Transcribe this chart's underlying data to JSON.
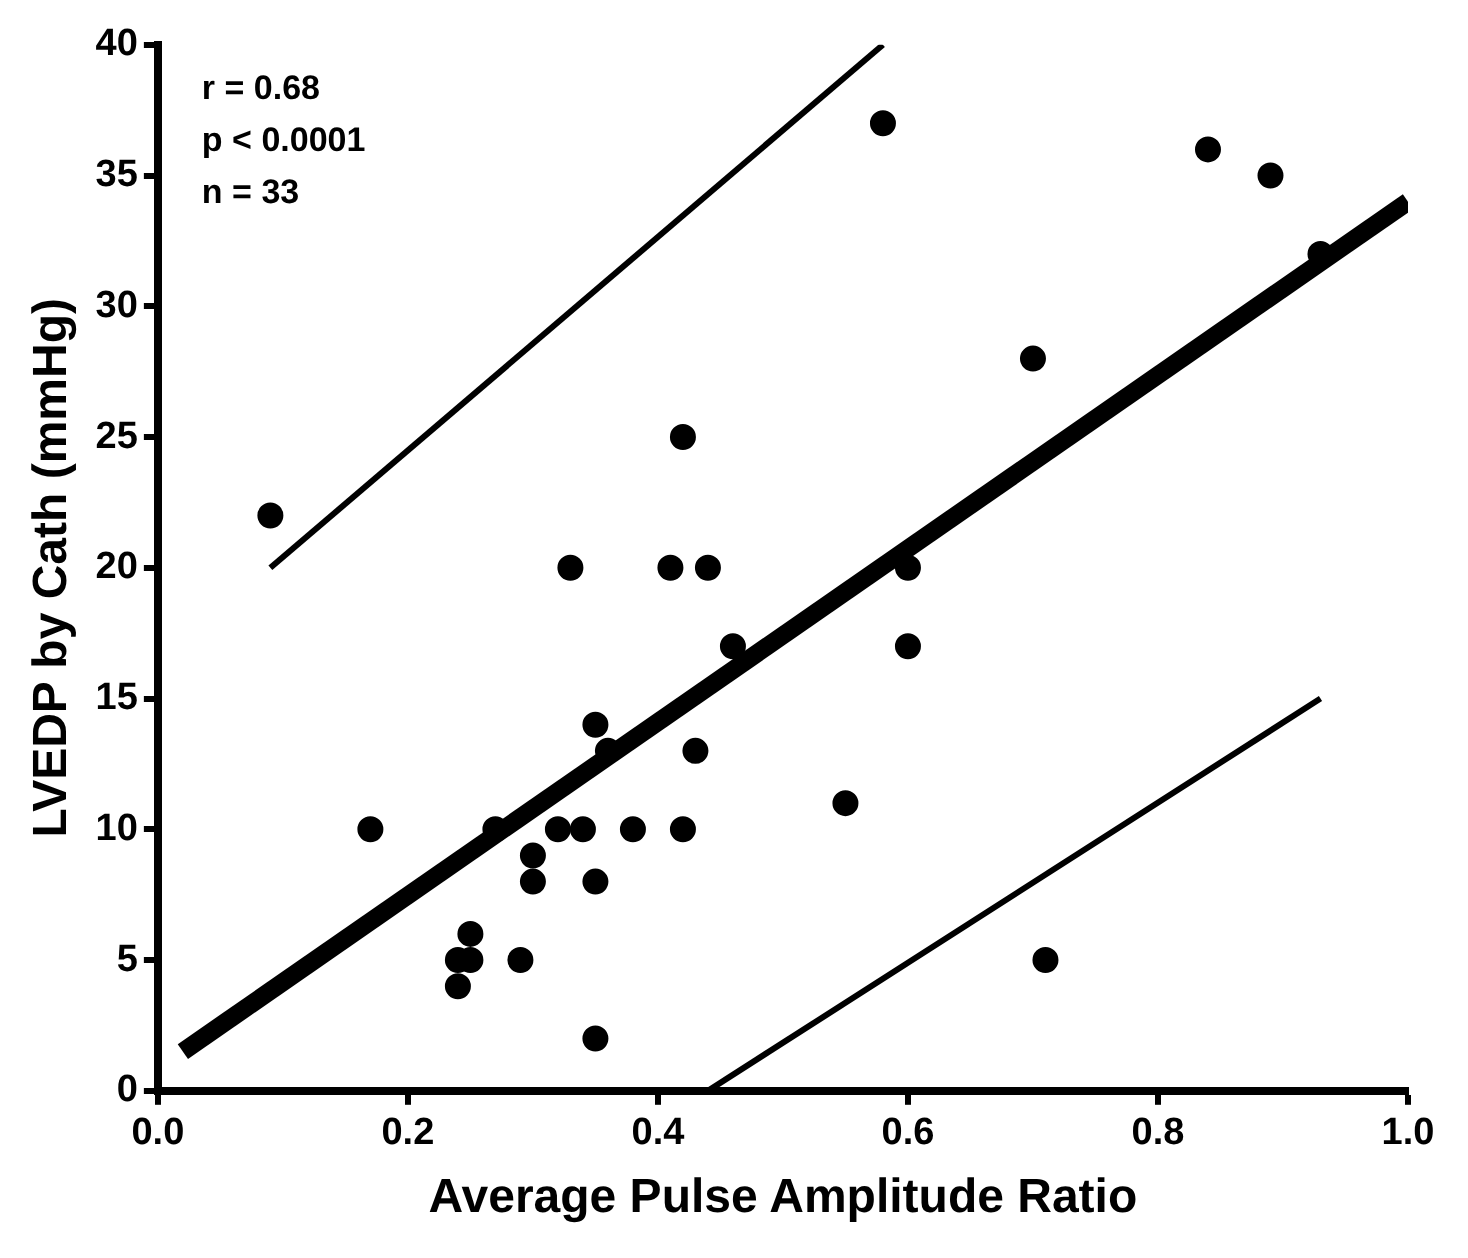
{
  "chart_data": {
    "type": "scatter",
    "xlabel": "Average Pulse Amplitude Ratio",
    "ylabel": "LVEDP by Cath (mmHg)",
    "annotations": [
      "r = 0.68",
      "p < 0.0001",
      "n = 33"
    ],
    "xlim": [
      0,
      1
    ],
    "xticks": [
      {
        "value": 0,
        "label": "0.0"
      },
      {
        "value": 0.2,
        "label": "0.2"
      },
      {
        "value": 0.4,
        "label": "0.4"
      },
      {
        "value": 0.6,
        "label": "0.6"
      },
      {
        "value": 0.8,
        "label": "0.8"
      },
      {
        "value": 1,
        "label": "1.0"
      }
    ],
    "ylim": [
      0,
      40
    ],
    "yticks": [
      0,
      5,
      10,
      15,
      20,
      25,
      30,
      35,
      40
    ],
    "grid": false,
    "legend": false,
    "series": [
      {
        "type": "scatter",
        "color": "#000000",
        "marker": "circle",
        "x": [
          0.09,
          0.17,
          0.24,
          0.24,
          0.25,
          0.25,
          0.27,
          0.29,
          0.3,
          0.3,
          0.32,
          0.33,
          0.34,
          0.35,
          0.35,
          0.35,
          0.36,
          0.38,
          0.41,
          0.42,
          0.42,
          0.43,
          0.44,
          0.46,
          0.55,
          0.58,
          0.6,
          0.6,
          0.7,
          0.71,
          0.84,
          0.89,
          0.93
        ],
        "values": [
          22,
          10,
          5,
          4,
          5,
          6,
          10,
          5,
          8,
          9,
          10,
          20,
          10,
          14,
          8,
          2,
          13,
          10,
          20,
          25,
          10,
          13,
          20,
          17,
          11,
          37,
          20,
          17,
          28,
          5,
          36,
          35,
          32
        ]
      },
      {
        "type": "line",
        "color": "#000000",
        "marker": "none",
        "line_style": "solid",
        "x": [
          0.02,
          1.0
        ],
        "values": [
          1.5,
          34
        ]
      },
      {
        "type": "line",
        "color": "#000000",
        "marker": "none",
        "line_style": "solid",
        "x": [
          0.09,
          0.58
        ],
        "values": [
          20,
          40
        ]
      },
      {
        "type": "line",
        "color": "#000000",
        "marker": "none",
        "line_style": "solid",
        "x": [
          0.44,
          0.93
        ],
        "values": [
          0,
          15
        ]
      }
    ]
  }
}
